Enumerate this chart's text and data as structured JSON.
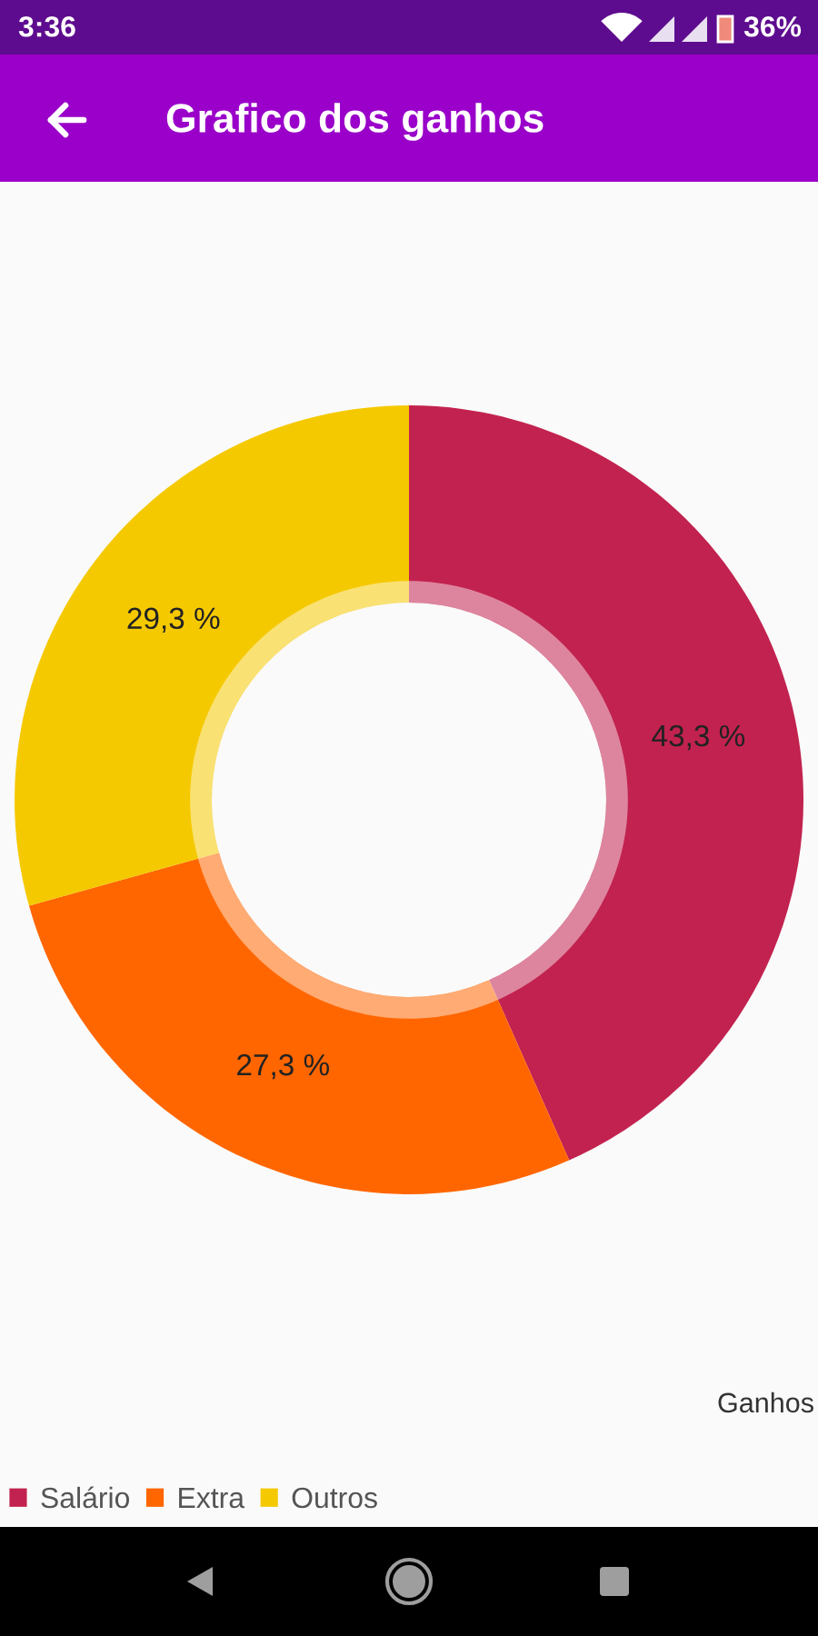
{
  "chart_data": {
    "type": "donut",
    "title": "Grafico dos ganhos",
    "categories": [
      "Salário",
      "Extra",
      "Outros"
    ],
    "values": [
      43.3,
      27.3,
      29.3
    ],
    "colors": [
      "#c2224f",
      "#ff6600",
      "#f5c900"
    ],
    "value_labels": [
      "43,3 %",
      "27,3 %",
      "29,3 %"
    ],
    "annotations": [
      "3:36",
      "36%",
      "Ganhos"
    ],
    "legend": "bottom left"
  }
}
